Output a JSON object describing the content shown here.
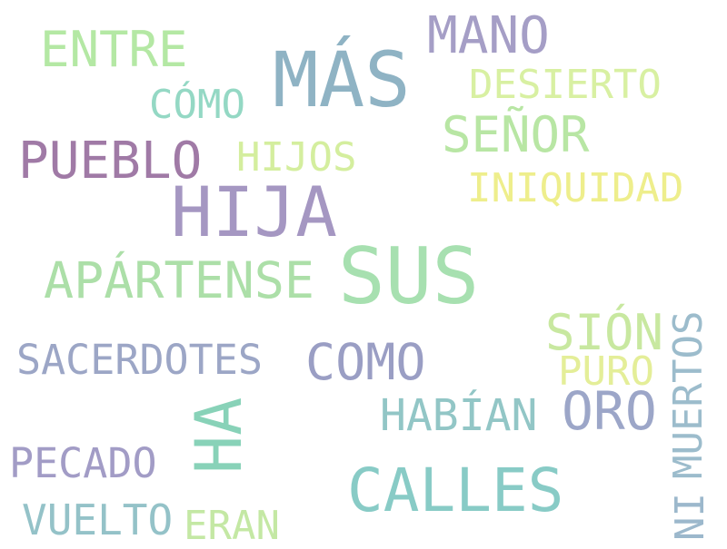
{
  "words": {
    "mas": {
      "text": "MÁS",
      "color": "#8fb3c4"
    },
    "hija": {
      "text": "HIJA",
      "color": "#a597c2"
    },
    "sus": {
      "text": "SUS",
      "color": "#a7e0b0"
    },
    "mano": {
      "text": "MANO",
      "color": "#a59ec6"
    },
    "entre": {
      "text": "ENTRE",
      "color": "#b4e8a4"
    },
    "desierto": {
      "text": "DESIERTO",
      "color": "#d8f0a2"
    },
    "como_acc": {
      "text": "CÓMO",
      "color": "#94d8c4"
    },
    "senor": {
      "text": "SEÑOR",
      "color": "#b8e6a4"
    },
    "pueblo": {
      "text": "PUEBLO",
      "color": "#a07aa6"
    },
    "hijos": {
      "text": "HIJOS",
      "color": "#d4ee9e"
    },
    "iniquidad": {
      "text": "INIQUIDAD",
      "color": "#eeee8c"
    },
    "apartense": {
      "text": "APÁRTENSE",
      "color": "#acdfa8"
    },
    "sion": {
      "text": "SIÓN",
      "color": "#c8e8a0"
    },
    "sacerdotes": {
      "text": "SACERDOTES",
      "color": "#9ca6c6"
    },
    "como": {
      "text": "COMO",
      "color": "#9a9ec4"
    },
    "puro": {
      "text": "PURO",
      "color": "#e4ee98"
    },
    "muertos": {
      "text": "MUERTOS",
      "color": "#9cbccc"
    },
    "ha": {
      "text": "HA",
      "color": "#88d2b8"
    },
    "habian": {
      "text": "HABÍAN",
      "color": "#92c6c6"
    },
    "oro": {
      "text": "ORO",
      "color": "#9ca6c8"
    },
    "pecado": {
      "text": "PECADO",
      "color": "#a29cc6"
    },
    "calles": {
      "text": "CALLES",
      "color": "#88cbc6"
    },
    "ni": {
      "text": "NI",
      "color": "#9cb8cc"
    },
    "vuelto": {
      "text": "VUELTO",
      "color": "#94c2c8"
    },
    "eran": {
      "text": "ERAN",
      "color": "#c4e8a4"
    }
  }
}
